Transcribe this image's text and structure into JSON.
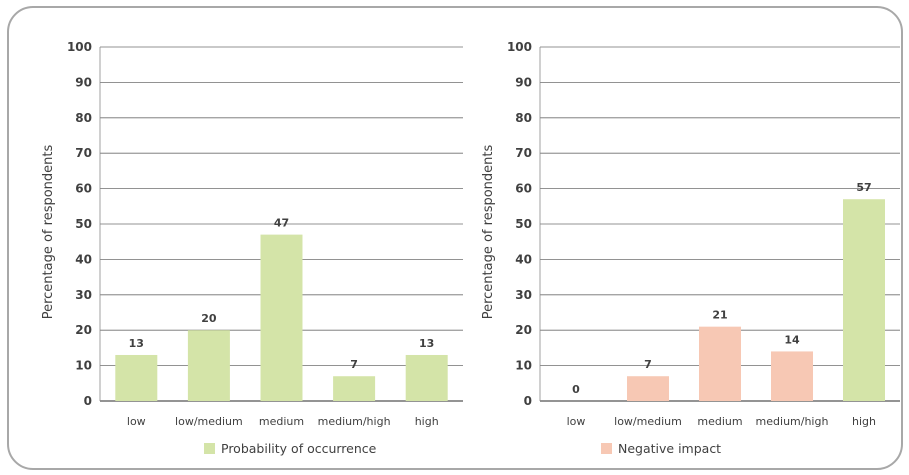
{
  "chart_data": [
    {
      "type": "bar",
      "categories": [
        "low",
        "low/medium",
        "medium",
        "medium/high",
        "high"
      ],
      "values": [
        13,
        20,
        47,
        7,
        13
      ],
      "bar_colors": [
        "#d4e4a8",
        "#d4e4a8",
        "#d4e4a8",
        "#d4e4a8",
        "#d4e4a8"
      ],
      "series": [
        {
          "name": "Probability of occurrence",
          "color": "#d4e4a8",
          "values": [
            13,
            20,
            47,
            7,
            13
          ]
        }
      ],
      "ylabel": "Percentage of respondents",
      "xlabel": "",
      "ylim": [
        0,
        100
      ],
      "yticks": [
        0,
        10,
        20,
        30,
        40,
        50,
        60,
        70,
        80,
        90,
        100
      ],
      "grid": true,
      "legend": "bottom"
    },
    {
      "type": "bar",
      "categories": [
        "low",
        "low/medium",
        "medium",
        "medium/high",
        "high"
      ],
      "values": [
        0,
        7,
        21,
        14,
        57
      ],
      "bar_colors": [
        "#f7c8b4",
        "#f7c8b4",
        "#f7c8b4",
        "#f7c8b4",
        "#d4e4a8"
      ],
      "series": [
        {
          "name": "Negative impact",
          "color": "#f7c8b4",
          "values": [
            0,
            7,
            21,
            14,
            57
          ]
        }
      ],
      "ylabel": "Percentage of respondents",
      "xlabel": "",
      "ylim": [
        0,
        100
      ],
      "yticks": [
        0,
        10,
        20,
        30,
        40,
        50,
        60,
        70,
        80,
        90,
        100
      ],
      "grid": true,
      "legend": "bottom"
    }
  ]
}
